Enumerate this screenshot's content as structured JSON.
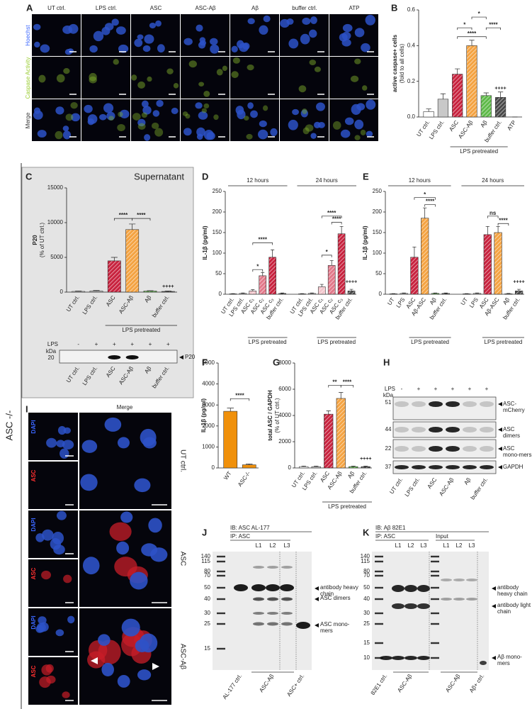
{
  "side_label": "ASC -/-",
  "panel_a": {
    "letter": "A",
    "columns": [
      "UT ctrl.",
      "LPS ctrl.",
      "ASC",
      "ASC-Aβ",
      "Aβ",
      "buffer ctrl.",
      "ATP"
    ],
    "rows": [
      "Hoechst",
      "Caspase Activity",
      "Merge"
    ]
  },
  "chart_data": [
    {
      "type": "bar",
      "letter": "B",
      "ylabel": [
        "active caspase+ cells",
        "(fold to all cells)"
      ],
      "categories": [
        "UT ctrl.",
        "LPS ctrl.",
        "ASC",
        "ASC-Aβ",
        "Aβ",
        "buffer ctrl.",
        "ATP"
      ],
      "values": [
        0.03,
        0.1,
        0.24,
        0.4,
        0.12,
        0.11,
        0.0
      ],
      "errors": [
        0.015,
        0.03,
        0.03,
        0.03,
        0.015,
        0.03,
        0
      ],
      "colors": [
        "#ffffff",
        "#c8c8c8",
        "#c8233f",
        "#f4a342",
        "#5fba4a",
        "#4a4a4a",
        "#ffffff"
      ],
      "hatched": [
        false,
        false,
        true,
        true,
        true,
        true,
        false
      ],
      "ylim": [
        0,
        0.6
      ],
      "yticks": [
        {
          "value": 0,
          "label": "0.0"
        },
        0.2,
        0.4,
        0.6
      ],
      "annotations": [
        "*",
        "****",
        "*",
        "****",
        "++++"
      ],
      "group_label": "LPS pretreated"
    },
    {
      "type": "bar",
      "letter": "C",
      "title": "Supernatant",
      "ylabel": [
        "P20",
        "(% of UT ctrl.)"
      ],
      "categories": [
        "UT ctrl.",
        "LPS ctrl.",
        "ASC",
        "ASC-Aβ",
        "Aβ",
        "buffer ctrl."
      ],
      "values": [
        100,
        150,
        4500,
        9000,
        150,
        100
      ],
      "errors": [
        50,
        80,
        500,
        800,
        60,
        50
      ],
      "colors": [
        "#ffffff",
        "#c8c8c8",
        "#c8233f",
        "#f4a342",
        "#5fba4a",
        "#4a4a4a"
      ],
      "hatched": [
        false,
        false,
        true,
        true,
        true,
        true
      ],
      "ylim": [
        0,
        15000
      ],
      "yticks": [
        0,
        5000,
        10000,
        15000
      ],
      "annotations": [
        "****",
        "****",
        "++++"
      ],
      "group_label": "LPS pretreated"
    },
    {
      "type": "bar",
      "letter": "D",
      "ylabel": [
        "IL-1β (pg/ml)"
      ],
      "groups": [
        {
          "label": "12 hours",
          "categories": [
            "UT ctrl.",
            "LPS ctrl.",
            "ASC c₁",
            "ASC c₂",
            "ASC c₃",
            "buffer ctrl."
          ],
          "values": [
            1,
            2,
            8,
            45,
            90,
            2
          ],
          "errors": [
            0.5,
            1,
            3,
            8,
            18,
            1
          ],
          "footer": "LPS pretreated"
        },
        {
          "label": "24 hours",
          "categories": [
            "UT ctrl.",
            "LPS ctrl.",
            "ASC c₁",
            "ASC c₂",
            "ASC c₃",
            "buffer ctrl."
          ],
          "values": [
            1,
            2,
            18,
            70,
            147,
            8
          ],
          "errors": [
            0.5,
            1,
            6,
            12,
            18,
            4
          ],
          "footer": "LPS pretreated"
        }
      ],
      "colors": [
        "#ffffff",
        "#c8c8c8",
        "#f2c6cc",
        "#e2798a",
        "#c8233f",
        "#4a4a4a"
      ],
      "hatched": [
        false,
        false,
        true,
        true,
        true,
        true
      ],
      "ylim": [
        0,
        250
      ],
      "yticks": [
        0,
        50,
        100,
        150,
        200,
        250
      ],
      "annotations": [
        "*",
        "****",
        "*",
        "****",
        "****",
        "++++"
      ]
    },
    {
      "type": "bar",
      "letter": "E",
      "ylabel": [
        "IL-1β (pg/ml)"
      ],
      "groups": [
        {
          "label": "12 hours",
          "categories": [
            "UT",
            "LPS",
            "ASC",
            "Aβ-ASC",
            "Aβ",
            "buffer ctrl."
          ],
          "values": [
            1,
            2,
            90,
            185,
            2,
            2
          ],
          "errors": [
            0.5,
            1,
            25,
            25,
            1,
            1
          ],
          "footer": "LPS pretreated"
        },
        {
          "label": "24 hours",
          "categories": [
            "UT",
            "LPS",
            "ASC",
            "Aβ-ASC",
            "Aβ",
            "buffer ctrl."
          ],
          "values": [
            1,
            2,
            145,
            150,
            1,
            8
          ],
          "errors": [
            0.5,
            1,
            20,
            15,
            1,
            4
          ],
          "footer": "LPS pretreated"
        }
      ],
      "colors": [
        "#ffffff",
        "#c8c8c8",
        "#c8233f",
        "#f4a342",
        "#5fba4a",
        "#4a4a4a"
      ],
      "hatched": [
        false,
        false,
        true,
        true,
        true,
        true
      ],
      "ylim": [
        0,
        250
      ],
      "yticks": [
        0,
        50,
        100,
        150,
        200,
        250
      ],
      "annotations": [
        "*",
        "****",
        "ns",
        "****",
        "++++"
      ]
    },
    {
      "type": "bar",
      "letter": "F",
      "ylabel": [
        "IL-1β (pg/ml)"
      ],
      "categories": [
        "WT",
        "ASC-/-"
      ],
      "values": [
        2700,
        150
      ],
      "errors": [
        150,
        40
      ],
      "colors": [
        "#f0900a",
        "#f0900a"
      ],
      "hatched": [
        false,
        false
      ],
      "ylim": [
        0,
        5000
      ],
      "yticks": [
        0,
        1000,
        2000,
        3000,
        4000,
        5000
      ],
      "annotations": [
        "****"
      ]
    },
    {
      "type": "bar",
      "letter": "G",
      "ylabel": [
        "total ASC / GAPDH",
        "(% of UT ctrl.)"
      ],
      "categories": [
        "UT ctrl.",
        "LPS ctrl.",
        "ASC",
        "ASC-Aβ",
        "Aβ",
        "buffer ctrl."
      ],
      "values": [
        100,
        100,
        4100,
        5300,
        100,
        100
      ],
      "errors": [
        40,
        40,
        250,
        450,
        40,
        40
      ],
      "colors": [
        "#ffffff",
        "#c8c8c8",
        "#c8233f",
        "#f4a342",
        "#5fba4a",
        "#4a4a4a"
      ],
      "hatched": [
        false,
        false,
        true,
        true,
        true,
        true
      ],
      "ylim": [
        0,
        8000
      ],
      "yticks": [
        0,
        2000,
        4000,
        6000,
        8000
      ],
      "annotations": [
        "**",
        "****",
        "++++"
      ],
      "group_label": "LPS pretreated"
    }
  ],
  "panel_c_blot": {
    "lps_label": "LPS",
    "lps": [
      "-",
      "+",
      "+",
      "+",
      "+",
      "+"
    ],
    "kda_label": "kDa",
    "kda": [
      "20"
    ],
    "band": "P20",
    "lanes": [
      "UT ctrl.",
      "LPS ctrl.",
      "ASC",
      "ASC-Aβ",
      "Aβ",
      "buffer ctrl."
    ]
  },
  "panel_h": {
    "letter": "H",
    "lps_label": "LPS",
    "lps": [
      "-",
      "+",
      "+",
      "+",
      "+",
      "+"
    ],
    "kda_label": "kDa",
    "kda": [
      "51",
      "44",
      "22",
      "37"
    ],
    "bands": [
      "ASC-mCherry",
      "ASC dimers",
      "ASC mono-mers",
      "GAPDH"
    ],
    "lanes": [
      "UT ctrl.",
      "LPS ctrl.",
      "ASC",
      "ASC-Aβ",
      "Aβ",
      "buffer ctrl."
    ]
  },
  "panel_i": {
    "letter": "I",
    "merge": "Merge",
    "stains": [
      "DAPI",
      "ASC",
      "DAPI",
      "ASC",
      "DAPI",
      "ASC"
    ],
    "conditions": [
      "UT ctrl.",
      "ASC",
      "ASC-Aβ"
    ]
  },
  "panel_j": {
    "letter": "J",
    "ib": "IB: ASC AL-177",
    "ip": "IP: ASC",
    "lanes": [
      "L1",
      "L2",
      "L3"
    ],
    "markers": [
      "140",
      "115",
      "80",
      "70",
      "50",
      "40",
      "30",
      "25",
      "15"
    ],
    "bands": [
      "antibody heavy chain",
      "ASC dimers",
      "ASC mono-mers"
    ],
    "groups": [
      "AL-177 ctrl.",
      "ASC-Aβ",
      "ASC+ ctrl."
    ]
  },
  "panel_k": {
    "letter": "K",
    "ib": "IB: Aβ 82E1",
    "ip": "IP: ASC",
    "input": "Input",
    "lanes": [
      "L1",
      "L2",
      "L3",
      "L1",
      "L2",
      "L3"
    ],
    "markers": [
      "140",
      "115",
      "80",
      "70",
      "50",
      "40",
      "30",
      "25",
      "15",
      "10"
    ],
    "bands": [
      "antibody heavy chain",
      "antibody light chain",
      "Aβ mono-mers"
    ],
    "groups": [
      "82E1 ctrl.",
      "ASC-Aβ",
      "ASC-Aβ",
      "Aβ+ ctrl."
    ]
  }
}
